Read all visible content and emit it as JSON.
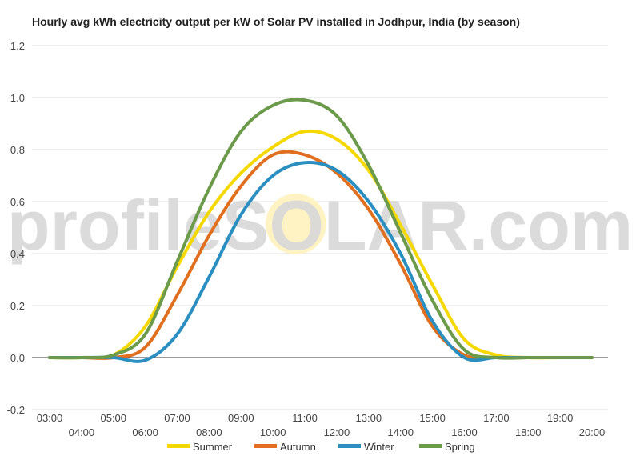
{
  "chart_data": {
    "type": "line",
    "title": "Hourly avg kWh electricity output per kW of Solar PV installed in Jodhpur, India (by season)",
    "xlabel": "",
    "ylabel": "",
    "x": [
      3,
      4,
      5,
      6,
      7,
      8,
      9,
      10,
      11,
      12,
      13,
      14,
      15,
      16,
      17,
      18,
      19,
      20
    ],
    "x_tick_labels": [
      "03:00",
      "04:00",
      "05:00",
      "06:00",
      "07:00",
      "08:00",
      "09:00",
      "10:00",
      "11:00",
      "12:00",
      "13:00",
      "14:00",
      "15:00",
      "16:00",
      "17:00",
      "18:00",
      "19:00",
      "20:00"
    ],
    "xlim": [
      3,
      20
    ],
    "ylim": [
      -0.2,
      1.2
    ],
    "y_ticks": [
      -0.2,
      0.0,
      0.2,
      0.4,
      0.6,
      0.8,
      1.0,
      1.2
    ],
    "y_tick_labels": [
      "-0.2",
      "0.0",
      "0.2",
      "0.4",
      "0.6",
      "0.8",
      "1.0",
      "1.2"
    ],
    "grid": true,
    "legend_position": "bottom",
    "series": [
      {
        "name": "Summer",
        "color": "#f5d800",
        "values": [
          0,
          0,
          0.01,
          0.12,
          0.35,
          0.56,
          0.71,
          0.81,
          0.87,
          0.84,
          0.72,
          0.51,
          0.28,
          0.07,
          0.01,
          0,
          0,
          0
        ]
      },
      {
        "name": "Autumn",
        "color": "#e07020",
        "values": [
          0,
          0,
          0,
          0.04,
          0.24,
          0.47,
          0.66,
          0.78,
          0.78,
          0.71,
          0.57,
          0.36,
          0.12,
          0.01,
          0,
          0,
          0,
          0
        ]
      },
      {
        "name": "Winter",
        "color": "#2a8fc0",
        "values": [
          0,
          0,
          0,
          -0.01,
          0.09,
          0.31,
          0.55,
          0.7,
          0.75,
          0.72,
          0.6,
          0.4,
          0.14,
          0,
          0,
          0,
          0,
          0
        ]
      },
      {
        "name": "Spring",
        "color": "#6a9a4a",
        "values": [
          0,
          0,
          0.01,
          0.09,
          0.37,
          0.65,
          0.87,
          0.97,
          0.99,
          0.93,
          0.74,
          0.48,
          0.22,
          0.03,
          0,
          0,
          0,
          0
        ]
      }
    ]
  },
  "watermark": "profileSOLAR.com",
  "colors": {
    "grid": "#dcdcdc",
    "zero_line": "#333333",
    "sun": "#fff3c4",
    "watermark": "#d8d8d8"
  }
}
